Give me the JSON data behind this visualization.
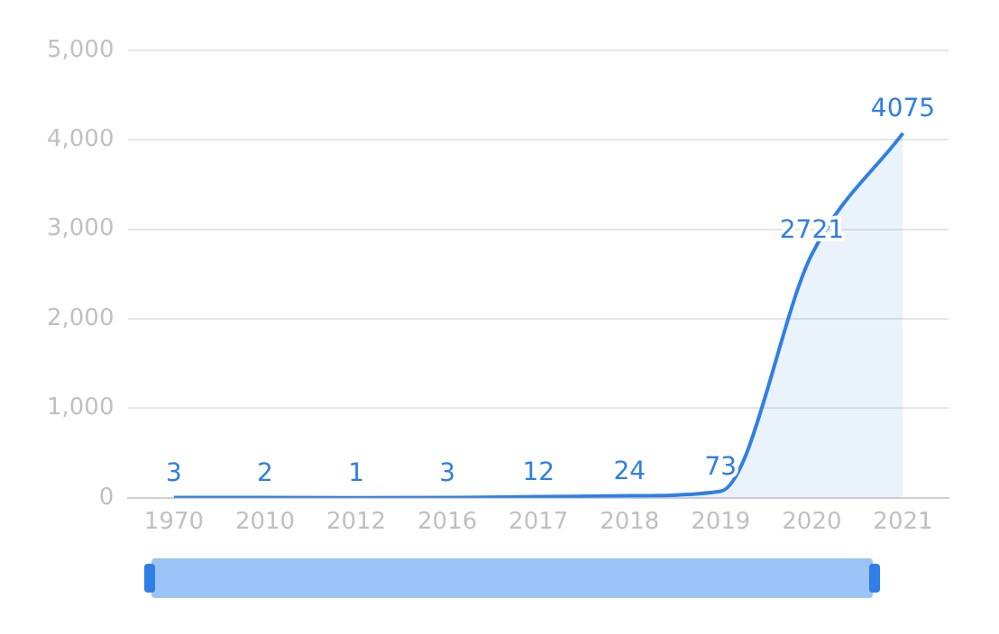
{
  "chart_data": {
    "type": "area",
    "categories": [
      "1970",
      "2010",
      "2012",
      "2016",
      "2017",
      "2018",
      "2019",
      "2020",
      "2021"
    ],
    "series": [
      {
        "color": "#2f7fe6",
        "values": [
          3,
          2,
          1,
          3,
          12,
          24,
          73,
          2721,
          4075
        ]
      }
    ],
    "ylim": [
      0,
      5000
    ],
    "yticks": [
      0,
      {
        "value": 1000,
        "label": "1,000"
      },
      {
        "value": 2000,
        "label": "2,000"
      },
      {
        "value": 3000,
        "label": "3,000"
      },
      {
        "value": 4000,
        "label": "4,000"
      },
      {
        "value": 5000,
        "label": "5,000"
      }
    ],
    "grid": "y",
    "data_labels": true,
    "legend": false,
    "marker": "none"
  }
}
